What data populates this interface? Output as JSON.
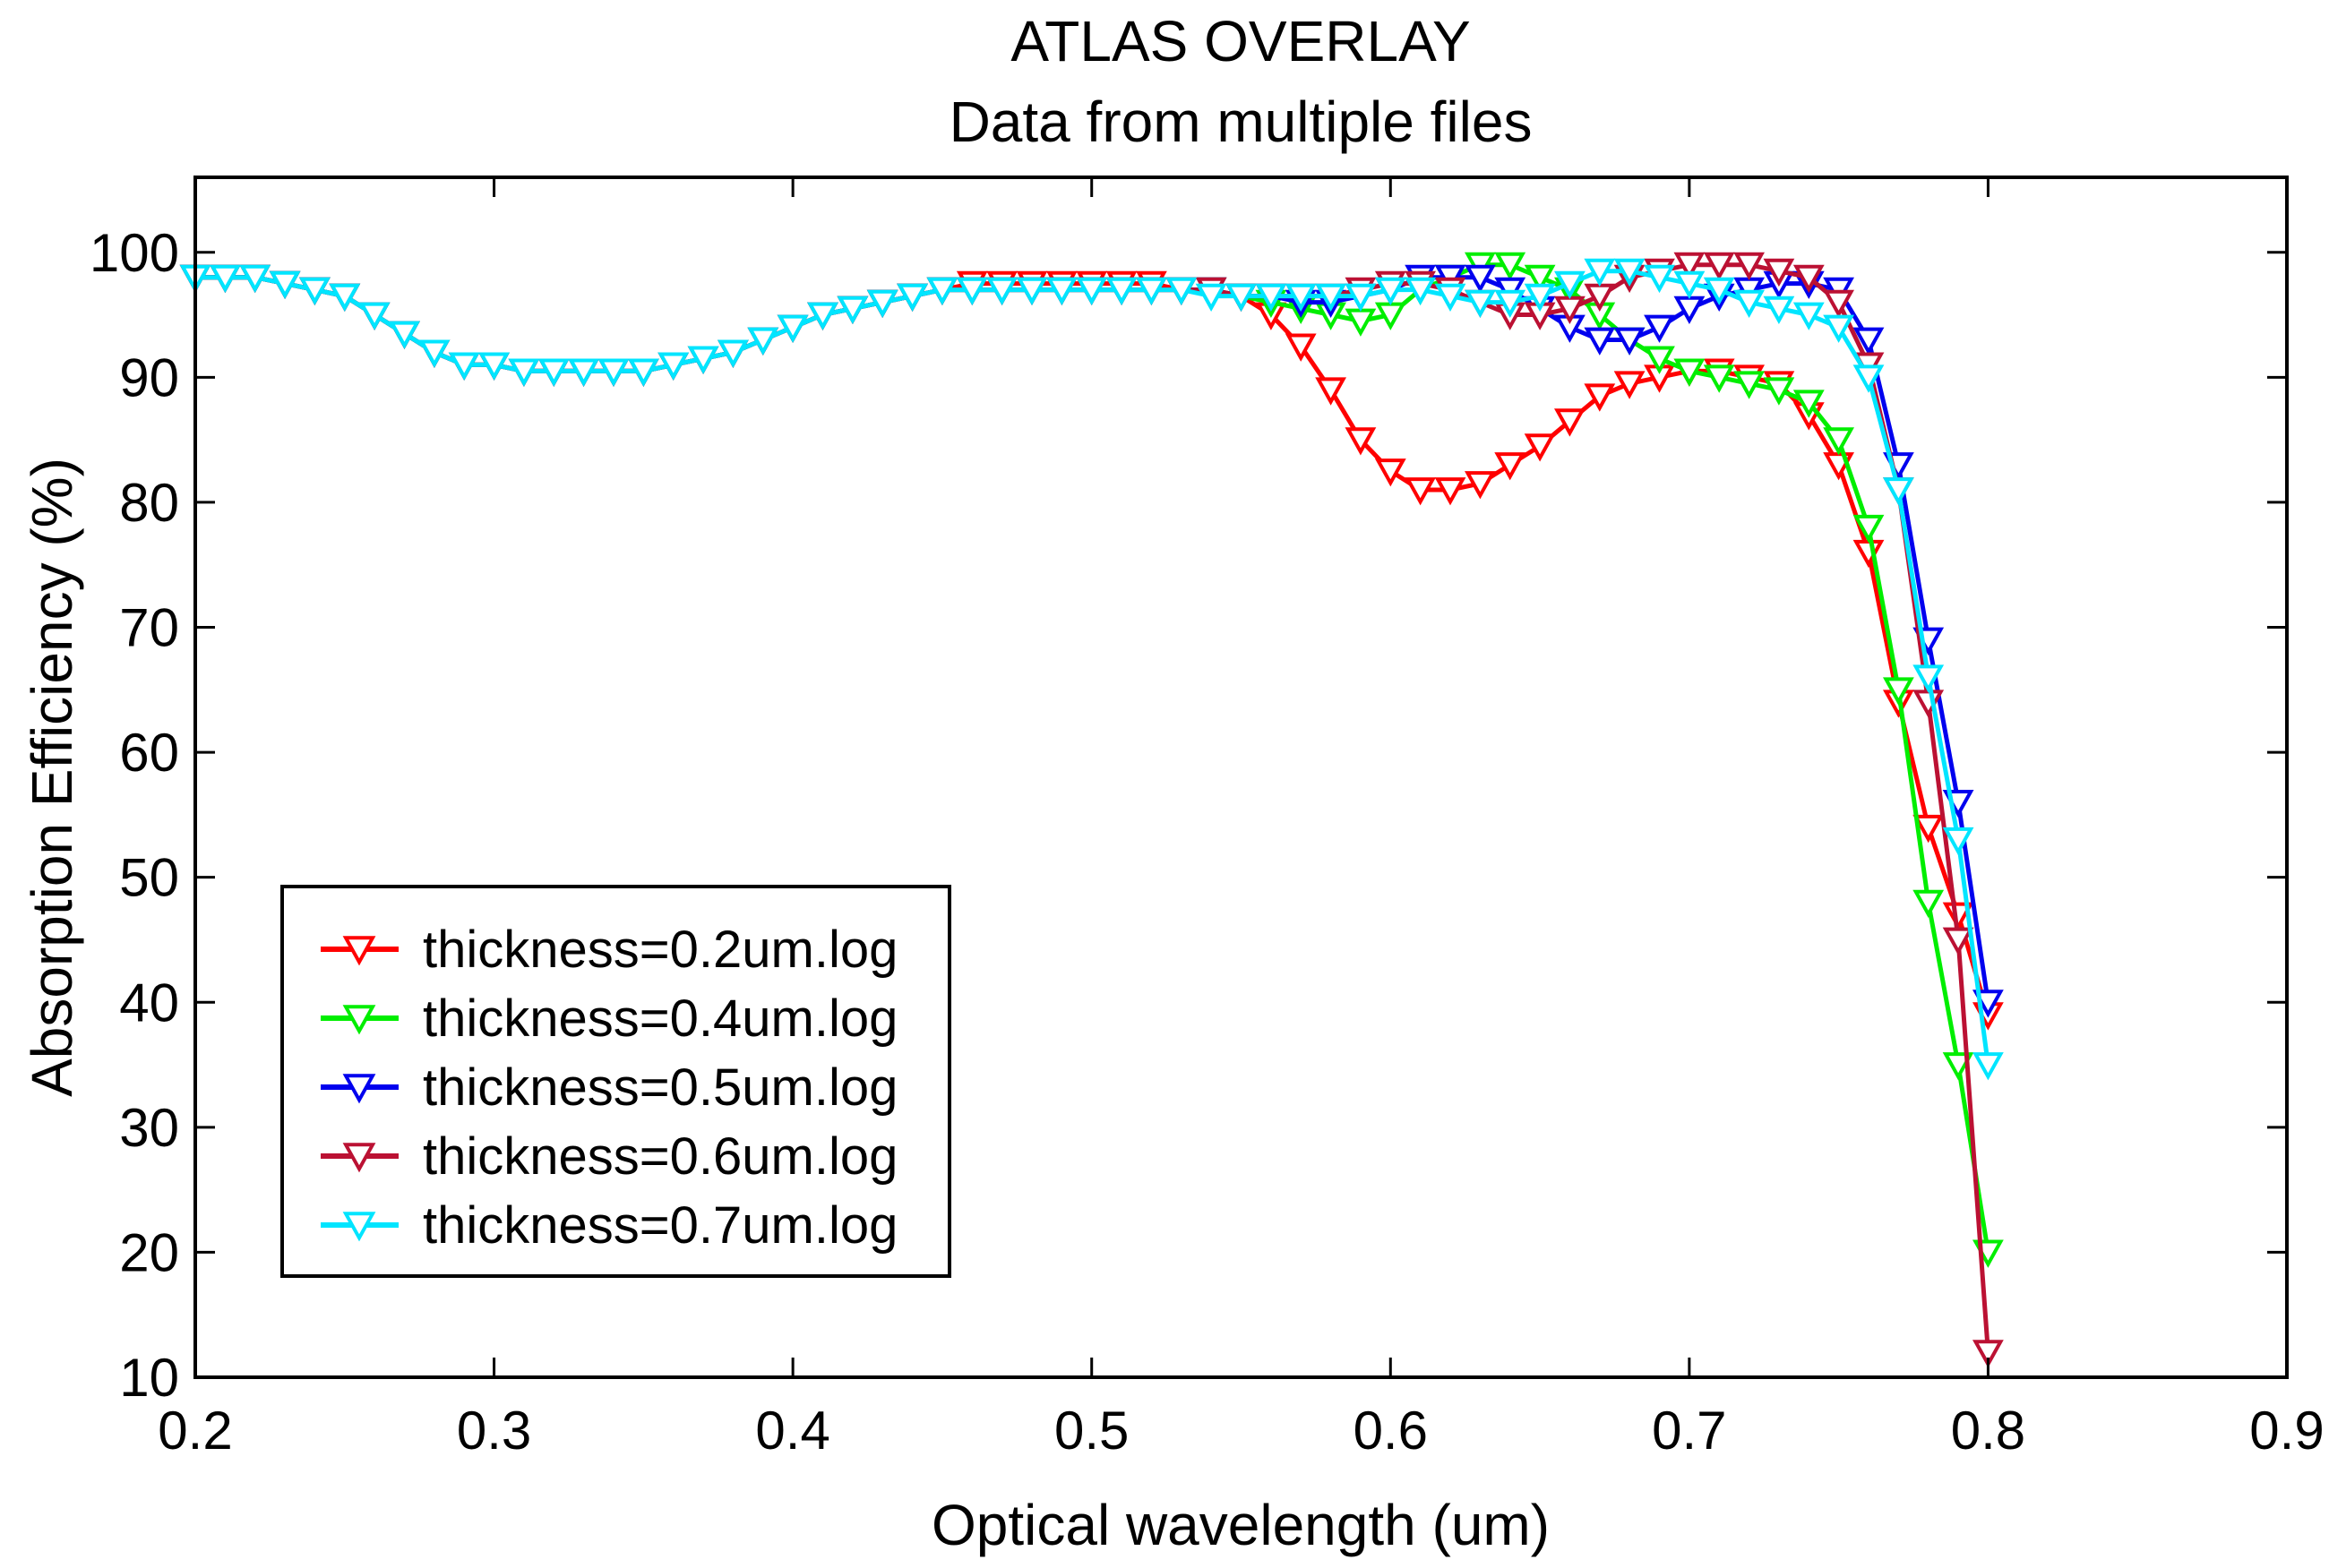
{
  "chart_data": {
    "type": "line",
    "title": "ATLAS OVERLAY",
    "subtitle": "Data from multiple files",
    "xlabel": "Optical wavelength (um)",
    "ylabel": "Absorption Efficiency (%)",
    "xlim": [
      0.2,
      0.9
    ],
    "ylim": [
      10,
      106
    ],
    "xticks": [
      0.2,
      0.3,
      0.4,
      0.5,
      0.6,
      0.7,
      0.8,
      0.9
    ],
    "xtick_labels": [
      "0.2",
      "0.3",
      "0.4",
      "0.5",
      "0.6",
      "0.7",
      "0.8",
      "0.9"
    ],
    "yticks": [
      10,
      20,
      30,
      40,
      50,
      60,
      70,
      80,
      90,
      100
    ],
    "ytick_labels": [
      "10",
      "20",
      "30",
      "40",
      "50",
      "60",
      "70",
      "80",
      "90",
      "100"
    ],
    "grid": false,
    "legend_position": "lower-left",
    "marker": "down-triangle",
    "x": [
      0.2,
      0.21,
      0.22,
      0.23,
      0.24,
      0.25,
      0.26,
      0.27,
      0.28,
      0.29,
      0.3,
      0.31,
      0.32,
      0.33,
      0.34,
      0.35,
      0.36,
      0.37,
      0.38,
      0.39,
      0.4,
      0.41,
      0.42,
      0.43,
      0.44,
      0.45,
      0.46,
      0.47,
      0.48,
      0.49,
      0.5,
      0.51,
      0.52,
      0.53,
      0.54,
      0.55,
      0.56,
      0.57,
      0.58,
      0.59,
      0.6,
      0.61,
      0.62,
      0.63,
      0.64,
      0.65,
      0.66,
      0.67,
      0.68,
      0.69,
      0.7,
      0.71,
      0.72,
      0.73,
      0.74,
      0.75,
      0.76,
      0.77,
      0.78,
      0.79,
      0.8
    ],
    "series": [
      {
        "name": "thickness=0.2um.log",
        "color": "#ff0000",
        "values": [
          98,
          98,
          98,
          97.5,
          97,
          96.5,
          95,
          93.5,
          92,
          91,
          91,
          90.5,
          90.5,
          90.5,
          90.5,
          90.5,
          91,
          91.5,
          92,
          93,
          94,
          95,
          95.5,
          96,
          96.5,
          97,
          97.5,
          97.5,
          97.5,
          97.5,
          97.5,
          97.5,
          97.5,
          97,
          97,
          96.5,
          95,
          92.5,
          89,
          85,
          82.5,
          81,
          81,
          81.5,
          83,
          84.5,
          86.5,
          88.5,
          89.5,
          90,
          90.5,
          90.5,
          90,
          89.5,
          87,
          83,
          76,
          64,
          54,
          47,
          39
        ]
      },
      {
        "name": "thickness=0.4um.log",
        "color": "#00ee00",
        "values": [
          98,
          98,
          98,
          97.5,
          97,
          96.5,
          95,
          93.5,
          92,
          91,
          91,
          90.5,
          90.5,
          90.5,
          90.5,
          90.5,
          91,
          91.5,
          92,
          93,
          94,
          95,
          95.5,
          96,
          96.5,
          97,
          97,
          97,
          97,
          97,
          97,
          97,
          97,
          97,
          97,
          96.5,
          96,
          95.5,
          95,
          94.5,
          95,
          97,
          98,
          99,
          99,
          98,
          97,
          95,
          93,
          91.5,
          90.5,
          90,
          89.5,
          89,
          88,
          85,
          78,
          65,
          48,
          35,
          20
        ]
      },
      {
        "name": "thickness=0.5um.log",
        "color": "#0000ee",
        "values": [
          98,
          98,
          98,
          97.5,
          97,
          96.5,
          95,
          93.5,
          92,
          91,
          91,
          90.5,
          90.5,
          90.5,
          90.5,
          90.5,
          91,
          91.5,
          92,
          93,
          94,
          95,
          95.5,
          96,
          96.5,
          97,
          97,
          97,
          97,
          97,
          97,
          97,
          97,
          97,
          97,
          96.5,
          96.5,
          96,
          96,
          96.5,
          97,
          98,
          98,
          98,
          97,
          95.5,
          94,
          93,
          93,
          94,
          95.5,
          96.5,
          97,
          97.5,
          97.5,
          97,
          93,
          83,
          69,
          56,
          40
        ]
      },
      {
        "name": "thickness=0.6um.log",
        "color": "#bb1133",
        "values": [
          98,
          98,
          98,
          97.5,
          97,
          96.5,
          95,
          93.5,
          92,
          91,
          91,
          90.5,
          90.5,
          90.5,
          90.5,
          90.5,
          91,
          91.5,
          92,
          93,
          94,
          95,
          95.5,
          96,
          96.5,
          97,
          97,
          97,
          97,
          97,
          97,
          97,
          97,
          97,
          97,
          96.5,
          96.5,
          96.5,
          96.5,
          97,
          97.5,
          97.5,
          97,
          96,
          95,
          95,
          95.5,
          96.5,
          98,
          98.5,
          99,
          99,
          99,
          98.5,
          98,
          96,
          91,
          81,
          64,
          45,
          12
        ]
      },
      {
        "name": "thickness=0.7um.log",
        "color": "#00e5ff",
        "values": [
          98,
          98,
          98,
          97.5,
          97,
          96.5,
          95,
          93.5,
          92,
          91,
          91,
          90.5,
          90.5,
          90.5,
          90.5,
          90.5,
          91,
          91.5,
          92,
          93,
          94,
          95,
          95.5,
          96,
          96.5,
          97,
          97,
          97,
          97,
          97,
          97,
          97,
          97,
          97,
          96.5,
          96.5,
          96.5,
          96.5,
          96.5,
          96.5,
          97,
          97,
          96.5,
          96,
          96,
          96.5,
          97.5,
          98.5,
          98.5,
          98,
          97.5,
          97,
          96,
          95.5,
          95,
          94,
          90,
          81,
          66,
          53,
          35
        ]
      }
    ]
  }
}
